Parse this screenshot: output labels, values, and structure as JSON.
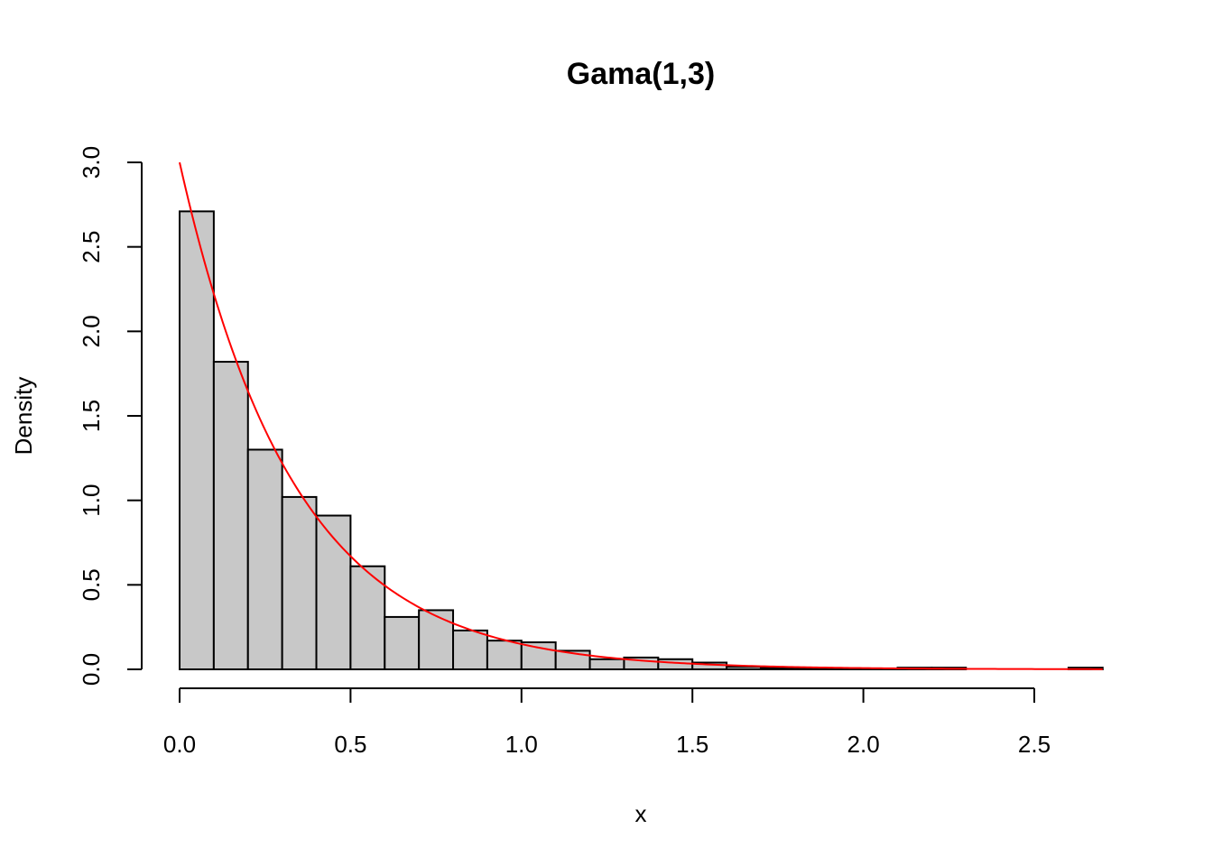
{
  "chart_data": {
    "type": "bar",
    "title": "Gama(1,3)",
    "xlabel": "x",
    "ylabel": "Density",
    "xlim": [
      0,
      2.7
    ],
    "ylim": [
      0,
      3.0
    ],
    "x_ticks": [
      "0.0",
      "0.5",
      "1.0",
      "1.5",
      "2.0",
      "2.5"
    ],
    "y_ticks": [
      "0.0",
      "0.5",
      "1.0",
      "1.5",
      "2.0",
      "2.5",
      "3.0"
    ],
    "bin_width": 0.1,
    "bins": [
      {
        "from": 0.0,
        "to": 0.1,
        "density": 2.71
      },
      {
        "from": 0.1,
        "to": 0.2,
        "density": 1.82
      },
      {
        "from": 0.2,
        "to": 0.3,
        "density": 1.3
      },
      {
        "from": 0.3,
        "to": 0.4,
        "density": 1.02
      },
      {
        "from": 0.4,
        "to": 0.5,
        "density": 0.91
      },
      {
        "from": 0.5,
        "to": 0.6,
        "density": 0.61
      },
      {
        "from": 0.6,
        "to": 0.7,
        "density": 0.31
      },
      {
        "from": 0.7,
        "to": 0.8,
        "density": 0.35
      },
      {
        "from": 0.8,
        "to": 0.9,
        "density": 0.23
      },
      {
        "from": 0.9,
        "to": 1.0,
        "density": 0.17
      },
      {
        "from": 1.0,
        "to": 1.1,
        "density": 0.16
      },
      {
        "from": 1.1,
        "to": 1.2,
        "density": 0.11
      },
      {
        "from": 1.2,
        "to": 1.3,
        "density": 0.06
      },
      {
        "from": 1.3,
        "to": 1.4,
        "density": 0.07
      },
      {
        "from": 1.4,
        "to": 1.5,
        "density": 0.06
      },
      {
        "from": 1.5,
        "to": 1.6,
        "density": 0.04
      },
      {
        "from": 1.6,
        "to": 1.7,
        "density": 0.015
      },
      {
        "from": 1.7,
        "to": 1.8,
        "density": 0.01
      },
      {
        "from": 1.8,
        "to": 1.9,
        "density": 0.005
      },
      {
        "from": 1.9,
        "to": 2.0,
        "density": 0.005
      },
      {
        "from": 2.0,
        "to": 2.1,
        "density": 0.005
      },
      {
        "from": 2.1,
        "to": 2.2,
        "density": 0.01
      },
      {
        "from": 2.2,
        "to": 2.3,
        "density": 0.01
      },
      {
        "from": 2.3,
        "to": 2.4,
        "density": 0.0
      },
      {
        "from": 2.4,
        "to": 2.5,
        "density": 0.0
      },
      {
        "from": 2.5,
        "to": 2.6,
        "density": 0.0
      },
      {
        "from": 2.6,
        "to": 2.7,
        "density": 0.01
      }
    ],
    "overlay": {
      "type": "line",
      "function": "3*exp(-3*x)",
      "color": "#ff0000"
    },
    "bar_fill": "#c8c8c8",
    "grid": false
  }
}
